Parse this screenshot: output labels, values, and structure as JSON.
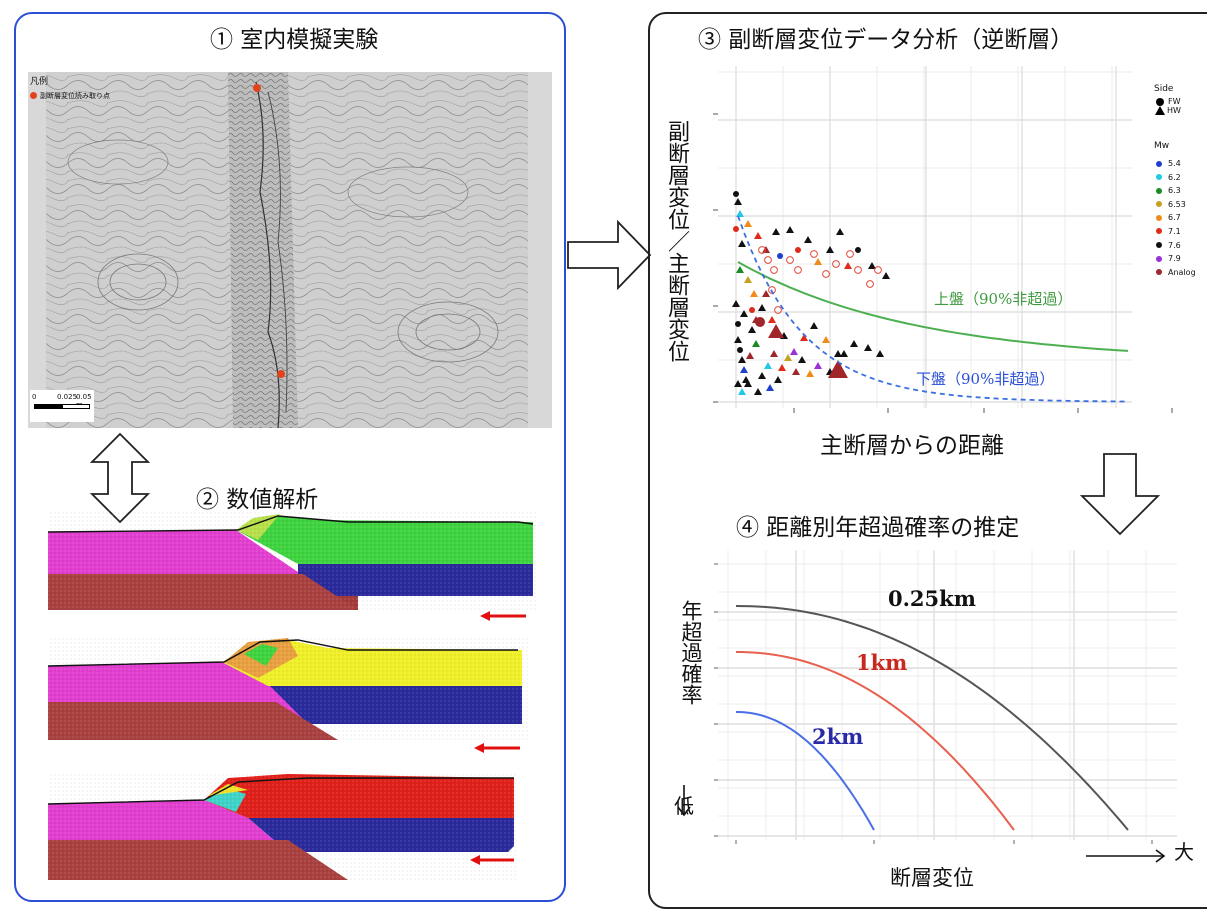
{
  "panel1": {
    "title": "① 室内模擬実験",
    "legend_title": "凡例",
    "legend_item": "副断層変位読み取り点",
    "scale_ticks": [
      "0",
      "0.025",
      "0.05 m"
    ]
  },
  "panel2": {
    "title": "② 数値解析"
  },
  "panel3": {
    "title": "③ 副断層変位データ分析（逆断層）",
    "ylabel": "副断層変位／主断層変位",
    "xlabel": "主断層からの距離",
    "curve_hw_label": "上盤（90%非超過）",
    "curve_fw_label": "下盤（90%非超過）",
    "legend": {
      "side_title": "Side",
      "side_items": [
        "FW",
        "HW"
      ],
      "mw_title": "Mw",
      "mw_items": [
        {
          "label": "5.4",
          "color": "#1f3fcf"
        },
        {
          "label": "6.2",
          "color": "#22c8e6"
        },
        {
          "label": "6.3",
          "color": "#1a8a22"
        },
        {
          "label": "6.53",
          "color": "#c8a020"
        },
        {
          "label": "6.7",
          "color": "#f08a1a"
        },
        {
          "label": "7.1",
          "color": "#e02a1a"
        },
        {
          "label": "7.6",
          "color": "#111111"
        },
        {
          "label": "7.9",
          "color": "#9a30d8"
        },
        {
          "label": "Analog",
          "color": "#a0262a"
        }
      ]
    },
    "colors": {
      "hw_curve": "#4caf50",
      "fw_curve": "#3a6fe0"
    }
  },
  "panel4": {
    "title": "④ 距離別年超過確率の推定",
    "ylabel": "年超過確率",
    "ylow": "低",
    "xlabel": "断層変位",
    "xhigh": "大",
    "curves": [
      {
        "label": "0.25km",
        "color": "#555555"
      },
      {
        "label": "1km",
        "color": "#e8604f"
      },
      {
        "label": "2km",
        "color": "#4a6ee8"
      }
    ]
  },
  "chart_data": [
    {
      "type": "scatter",
      "title": "③ 副断層変位データ分析（逆断層）",
      "xlabel": "主断層からの距離",
      "ylabel": "副断層変位／主断層変位",
      "series": [
        {
          "name": "上盤（90%非超過）"
        },
        {
          "name": "下盤（90%非超過）"
        }
      ],
      "grid": true,
      "legend_placement": "right"
    },
    {
      "type": "line",
      "title": "④ 距離別年超過確率の推定",
      "xlabel": "断層変位",
      "ylabel": "年超過確率",
      "series": [
        {
          "name": "0.25km"
        },
        {
          "name": "1km"
        },
        {
          "name": "2km"
        }
      ],
      "grid": true
    }
  ]
}
